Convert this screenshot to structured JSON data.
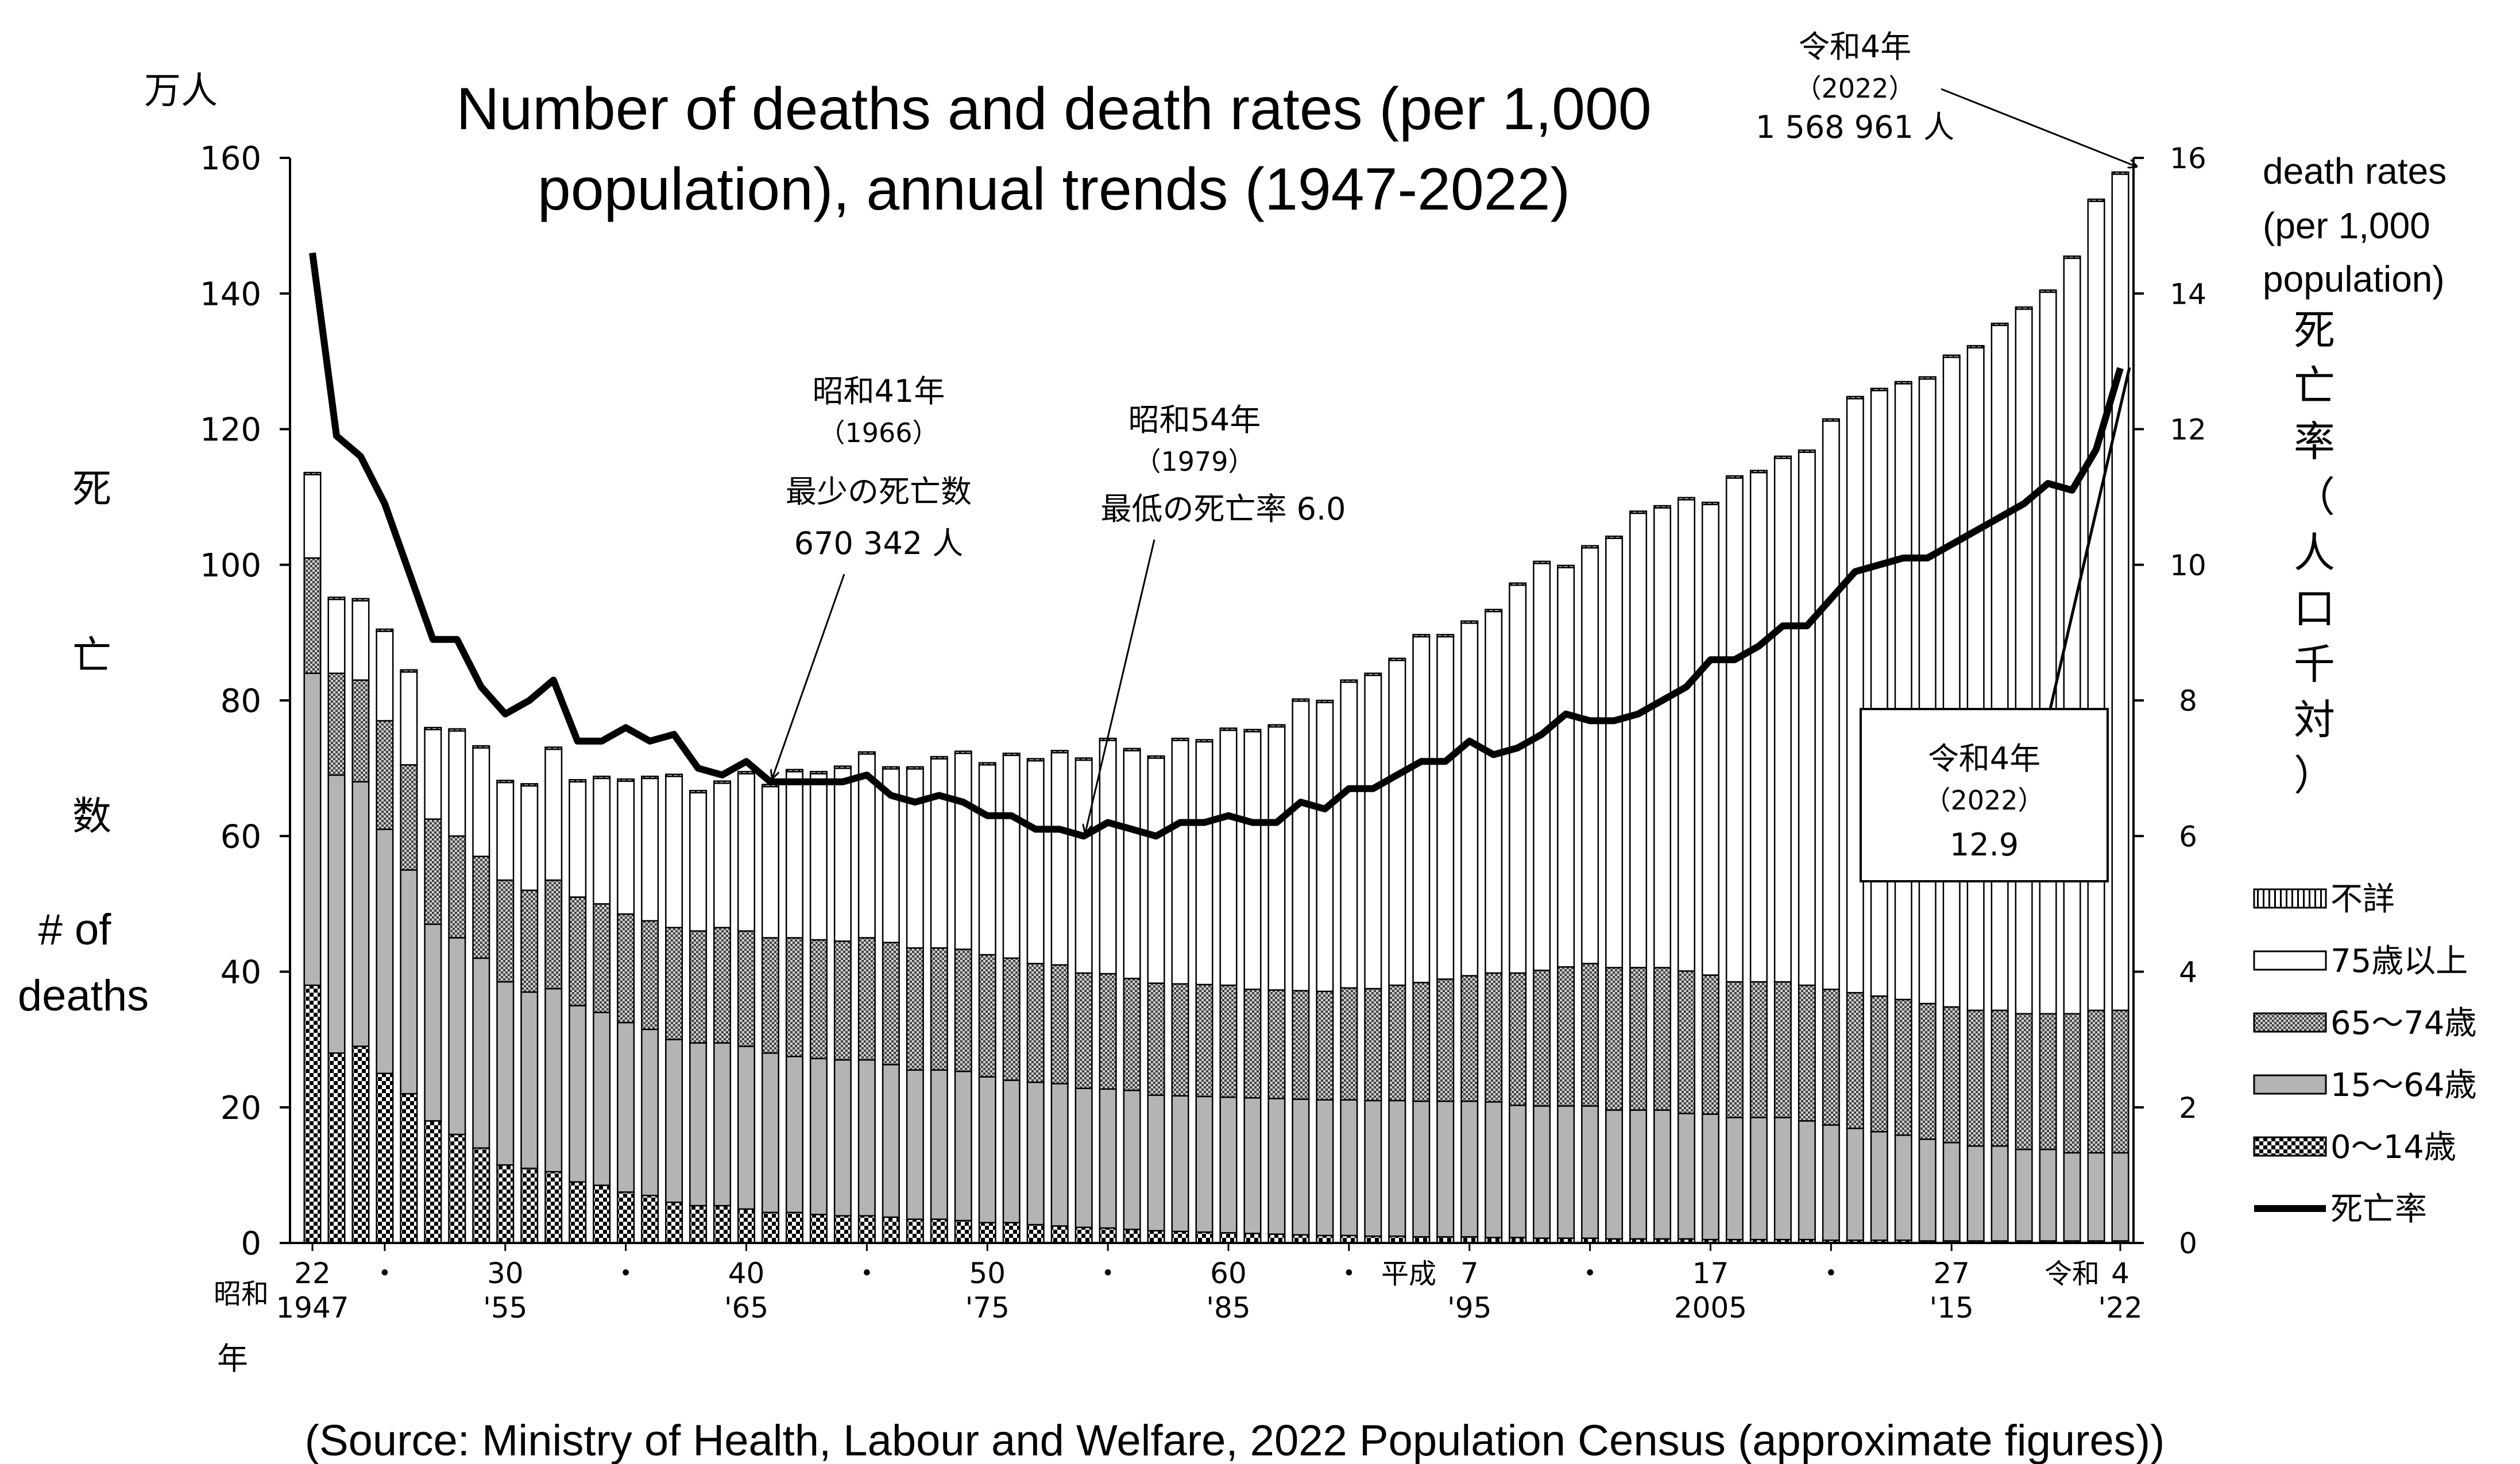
{
  "title_line1": "Number of deaths and death rates (per 1,000",
  "title_line2": "population), annual trends (1947-2022)",
  "source": "(Source: Ministry of Health, Labour and Welfare, 2022 Population Census (approximate figures))",
  "y_left_unit": "万人",
  "y_left_label_jp": [
    "死",
    "亡",
    "数"
  ],
  "y_left_label_en": [
    "# of",
    "deaths"
  ],
  "y_right_label_en": [
    "death rates",
    "(per 1,000",
    "population)"
  ],
  "y_right_label_jp": [
    "死",
    "亡",
    "率",
    "（",
    "人",
    "口",
    "千",
    "対",
    "）"
  ],
  "x_era_label": "昭和",
  "x_year_char": "年",
  "x_heisei": "平成",
  "x_reiwa": "令和",
  "colors": {
    "ink": "#000000",
    "band15_64": "#b4b4b4",
    "paper": "#ffffff"
  },
  "annotations": {
    "a1966": {
      "l1": "昭和41年",
      "l2": "（1966）",
      "l3": "最少の死亡数",
      "l4": "670 342 人"
    },
    "a1979": {
      "l1": "昭和54年",
      "l2": "（1979）",
      "l3": "最低の死亡率 6.0"
    },
    "a2022": {
      "l1": "令和4年",
      "l2": "（2022）",
      "l3": "1 568 961 人"
    },
    "box2022": {
      "l1": "令和4年",
      "l2": "（2022）",
      "l3": "12.9"
    }
  },
  "legend": [
    {
      "label": "不詳",
      "pattern": "fine-stripe"
    },
    {
      "label": "75歳以上",
      "pattern": "white"
    },
    {
      "label": "65～74歳",
      "pattern": "dense-check"
    },
    {
      "label": "15～64歳",
      "pattern": "gray"
    },
    {
      "label": "0～14歳",
      "pattern": "checker"
    },
    {
      "label": "死亡率",
      "pattern": "line"
    }
  ],
  "chart_data": {
    "type": "bar",
    "x_start": 1947,
    "x_end": 2022,
    "y_left_ticks": [
      "0",
      "20",
      "40",
      "60",
      "80",
      "100",
      "120",
      "140",
      "160"
    ],
    "y_right_ticks": [
      "0",
      "2",
      "4",
      "6",
      "8",
      "10",
      "12",
      "14",
      "16"
    ],
    "ylim_left": [
      0,
      160
    ],
    "ylim_right": [
      0,
      16
    ],
    "x_tick_labels": [
      {
        "year": 1947,
        "top": "22",
        "bottom": "1947"
      },
      {
        "year": 1950,
        "top": "・",
        "bottom": ""
      },
      {
        "year": 1955,
        "top": "30",
        "bottom": "'55"
      },
      {
        "year": 1960,
        "top": "・",
        "bottom": ""
      },
      {
        "year": 1965,
        "top": "40",
        "bottom": "'65"
      },
      {
        "year": 1970,
        "top": "・",
        "bottom": ""
      },
      {
        "year": 1975,
        "top": "50",
        "bottom": "'75"
      },
      {
        "year": 1980,
        "top": "・",
        "bottom": ""
      },
      {
        "year": 1985,
        "top": "60",
        "bottom": "'85"
      },
      {
        "year": 1990,
        "top": "・",
        "bottom": ""
      },
      {
        "year": 1995,
        "top": "7",
        "bottom": "'95"
      },
      {
        "year": 2000,
        "top": "・",
        "bottom": ""
      },
      {
        "year": 2005,
        "top": "17",
        "bottom": "2005"
      },
      {
        "year": 2010,
        "top": "・",
        "bottom": ""
      },
      {
        "year": 2015,
        "top": "27",
        "bottom": "'15"
      },
      {
        "year": 2022,
        "top": "4",
        "bottom": "'22"
      }
    ],
    "series": [
      {
        "name": "不詳",
        "values": [
          0.3,
          0.3,
          0.3,
          0.3,
          0.3,
          0.3,
          0.3,
          0.3,
          0.3,
          0.3,
          0.3,
          0.3,
          0.3,
          0.3,
          0.3,
          0.3,
          0.3,
          0.3,
          0.3,
          0.3,
          0.3,
          0.3,
          0.3,
          0.3,
          0.3,
          0.3,
          0.3,
          0.3,
          0.3,
          0.3,
          0.3,
          0.3,
          0.3,
          0.3,
          0.3,
          0.3,
          0.3,
          0.3,
          0.3,
          0.3,
          0.3,
          0.3,
          0.3,
          0.3,
          0.3,
          0.3,
          0.3,
          0.3,
          0.3,
          0.3,
          0.3,
          0.3,
          0.3,
          0.3,
          0.3,
          0.3,
          0.3,
          0.3,
          0.3,
          0.3,
          0.3,
          0.3,
          0.3,
          0.3,
          0.3,
          0.3,
          0.3,
          0.3,
          0.3,
          0.3,
          0.3,
          0.3,
          0.3,
          0.3,
          0.3,
          0.3
        ]
      },
      {
        "name": "75歳以上",
        "values": [
          12.3,
          10.9,
          11.7,
          13.2,
          13.7,
          13.2,
          15.5,
          16.0,
          14.4,
          15.4,
          19.3,
          17.0,
          18.5,
          19.6,
          21.0,
          22.3,
          20.4,
          21.3,
          23.2,
          22.3,
          24.5,
          24.5,
          25.5,
          27.1,
          25.6,
          26.4,
          27.9,
          28.9,
          28.0,
          29.9,
          29.9,
          31.3,
          31.4,
          34.4,
          33.6,
          33.2,
          35.9,
          35.8,
          37.6,
          38.0,
          38.8,
          42.7,
          42.6,
          45.1,
          46.2,
          47.9,
          51.0,
          50.5,
          52.0,
          53.3,
          57.2,
          60.0,
          58.9,
          61.3,
          63.3,
          67.0,
          67.8,
          69.5,
          69.4,
          74.3,
          75.1,
          77.2,
          78.6,
          83.8,
          87.6,
          89.3,
          90.8,
          92.1,
          95.8,
          97.7,
          101.0,
          103.9,
          106.4,
          111.4,
          119.3,
          123.3
        ]
      },
      {
        "name": "65～74歳",
        "values": [
          17.0,
          15.0,
          15.0,
          16.0,
          15.5,
          15.5,
          15.0,
          15.0,
          15.0,
          15.0,
          16.0,
          16.0,
          16.0,
          16.0,
          16.0,
          16.5,
          16.5,
          17.0,
          17.0,
          17.0,
          17.5,
          17.5,
          17.5,
          18.0,
          18.0,
          18.0,
          18.0,
          18.0,
          18.0,
          18.0,
          17.5,
          17.5,
          17.0,
          17.0,
          16.5,
          16.5,
          16.5,
          16.5,
          16.5,
          16.0,
          16.0,
          16.0,
          16.0,
          16.5,
          16.5,
          17.0,
          17.5,
          18.0,
          18.5,
          19.0,
          19.5,
          20.0,
          20.5,
          21.0,
          21.0,
          21.0,
          21.0,
          21.0,
          20.5,
          20.0,
          20.0,
          20.0,
          20.0,
          20.0,
          20.0,
          20.0,
          20.0,
          20.0,
          20.0,
          20.0,
          20.0,
          20.0,
          20.0,
          20.5,
          21.0,
          21.0
        ]
      },
      {
        "name": "15～64歳",
        "values": [
          46.0,
          41.0,
          39.0,
          36.0,
          33.0,
          29.0,
          29.0,
          28.0,
          27.0,
          26.0,
          27.0,
          26.0,
          25.5,
          25.0,
          24.5,
          24.0,
          24.0,
          24.0,
          24.0,
          23.5,
          23.0,
          23.0,
          23.0,
          23.0,
          22.5,
          22.0,
          22.0,
          22.0,
          21.5,
          21.0,
          21.0,
          21.0,
          20.5,
          20.5,
          20.5,
          20.0,
          20.0,
          20.0,
          20.0,
          20.0,
          20.0,
          20.0,
          20.0,
          20.0,
          20.0,
          20.0,
          20.0,
          20.0,
          20.0,
          20.0,
          19.5,
          19.5,
          19.5,
          19.5,
          19.0,
          19.0,
          19.0,
          18.5,
          18.5,
          18.0,
          18.0,
          18.0,
          17.5,
          17.0,
          16.5,
          16.0,
          15.5,
          15.0,
          14.5,
          14.0,
          14.0,
          13.5,
          13.5,
          13.0,
          13.0,
          13.0
        ]
      },
      {
        "name": "0～14歳",
        "values": [
          38.0,
          28.0,
          29.0,
          25.0,
          22.0,
          18.0,
          16.0,
          14.0,
          11.5,
          11.0,
          10.5,
          9.0,
          8.5,
          7.5,
          7.0,
          6.0,
          5.5,
          5.5,
          5.0,
          4.5,
          4.5,
          4.2,
          4.0,
          4.0,
          3.8,
          3.5,
          3.5,
          3.3,
          3.0,
          3.0,
          2.7,
          2.5,
          2.3,
          2.2,
          2.0,
          1.8,
          1.7,
          1.6,
          1.5,
          1.4,
          1.3,
          1.2,
          1.1,
          1.1,
          1.0,
          1.0,
          0.9,
          0.9,
          0.9,
          0.8,
          0.8,
          0.7,
          0.7,
          0.7,
          0.6,
          0.6,
          0.6,
          0.6,
          0.5,
          0.5,
          0.5,
          0.5,
          0.5,
          0.4,
          0.4,
          0.4,
          0.4,
          0.3,
          0.3,
          0.3,
          0.3,
          0.3,
          0.3,
          0.3,
          0.3,
          0.3
        ]
      },
      {
        "name": "死亡率",
        "axis": "right",
        "values": [
          14.6,
          11.9,
          11.6,
          10.9,
          9.9,
          8.9,
          8.9,
          8.2,
          7.8,
          8.0,
          8.3,
          7.4,
          7.4,
          7.6,
          7.4,
          7.5,
          7.0,
          6.9,
          7.1,
          6.8,
          6.8,
          6.8,
          6.8,
          6.9,
          6.6,
          6.5,
          6.6,
          6.5,
          6.3,
          6.3,
          6.1,
          6.1,
          6.0,
          6.2,
          6.1,
          6.0,
          6.2,
          6.2,
          6.3,
          6.2,
          6.2,
          6.5,
          6.4,
          6.7,
          6.7,
          6.9,
          7.1,
          7.1,
          7.4,
          7.2,
          7.3,
          7.5,
          7.8,
          7.7,
          7.7,
          7.8,
          8.0,
          8.2,
          8.6,
          8.6,
          8.8,
          9.1,
          9.1,
          9.5,
          9.9,
          10.0,
          10.1,
          10.1,
          10.3,
          10.5,
          10.7,
          10.9,
          11.2,
          11.1,
          11.7,
          12.9
        ]
      }
    ]
  }
}
